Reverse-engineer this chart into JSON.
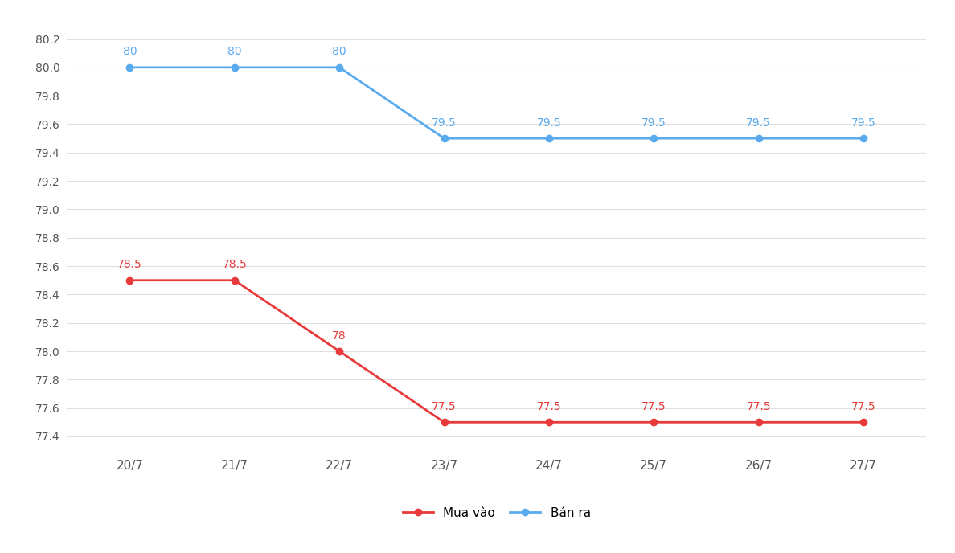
{
  "x_labels": [
    "20/7",
    "21/7",
    "22/7",
    "23/7",
    "24/7",
    "25/7",
    "26/7",
    "27/7"
  ],
  "mua_vao": [
    78.5,
    78.5,
    78.0,
    77.5,
    77.5,
    77.5,
    77.5,
    77.5
  ],
  "ban_ra": [
    80.0,
    80.0,
    80.0,
    79.5,
    79.5,
    79.5,
    79.5,
    79.5
  ],
  "mua_vao_color": "#e83a3a",
  "ban_ra_color": "#5aaaee",
  "mua_vao_label": "Mua vào",
  "ban_ra_label": "Bán ra",
  "ylim_min": 77.28,
  "ylim_max": 80.28,
  "ytick_values": [
    77.4,
    77.6,
    77.8,
    78.0,
    78.2,
    78.4,
    78.6,
    78.8,
    79.0,
    79.2,
    79.4,
    79.6,
    79.8,
    80.0,
    80.2
  ],
  "ytick_labels": [
    "77.4",
    "77.6",
    "77.8",
    "78.0",
    "78.2",
    "78.4",
    "78.6",
    "78.8",
    "79.0",
    "79.2",
    "79.4",
    "79.6",
    "79.8",
    "80.0",
    "80.2"
  ],
  "background_color": "#ffffff",
  "grid_color": "#e0e0e0",
  "tick_label_fontsize": 10,
  "annotation_fontsize": 10,
  "xlabel_fontsize": 11,
  "linewidth": 2.0,
  "marker_size": 6,
  "mua_vao_annotations": [
    "78.5",
    "78.5",
    "78",
    "77.5",
    "77.5",
    "77.5",
    "77.5",
    "77.5"
  ],
  "ban_ra_annotations": [
    "80",
    "80",
    "80",
    "79.5",
    "79.5",
    "79.5",
    "79.5",
    "79.5"
  ],
  "xlim_left": -0.6,
  "xlim_right": 7.6
}
